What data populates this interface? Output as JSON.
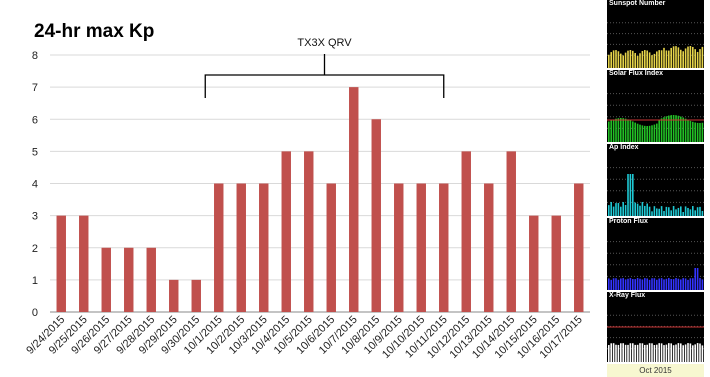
{
  "chart_data": {
    "type": "bar",
    "title": "24-hr max Kp",
    "categories": [
      "9/24/2015",
      "9/25/2015",
      "9/26/2015",
      "9/27/2015",
      "9/28/2015",
      "9/29/2015",
      "9/30/2015",
      "10/1/2015",
      "10/2/2015",
      "10/3/2015",
      "10/4/2015",
      "10/5/2015",
      "10/6/2015",
      "10/7/2015",
      "10/8/2015",
      "10/9/2015",
      "10/10/2015",
      "10/11/2015",
      "10/12/2015",
      "10/13/2015",
      "10/14/2015",
      "10/15/2015",
      "10/16/2015",
      "10/17/2015"
    ],
    "values": [
      3,
      3,
      2,
      2,
      2,
      1,
      1,
      4,
      4,
      4,
      5,
      5,
      4,
      7,
      6,
      4,
      4,
      4,
      5,
      4,
      5,
      3,
      3,
      4
    ],
    "ylim": [
      0,
      8
    ],
    "yticks": [
      "0",
      "1",
      "2",
      "3",
      "4",
      "5",
      "6",
      "7",
      "8"
    ],
    "grid": true,
    "bar_color": "#c0504d",
    "annotation": {
      "text": "TX3X QRV",
      "start": "9/30/2015",
      "end": "10/11/2015"
    }
  },
  "side_panels": [
    {
      "label": "Sunspot Number",
      "color": "#e6d44a"
    },
    {
      "label": "Solar Flux Index",
      "color": "#22c025"
    },
    {
      "label": "Ap Index",
      "color": "#1fc9d4"
    },
    {
      "label": "Proton Flux",
      "color": "#3333ff"
    },
    {
      "label": "X-Ray Flux",
      "color": "#ffffff"
    }
  ],
  "month_label": "Oct 2015"
}
